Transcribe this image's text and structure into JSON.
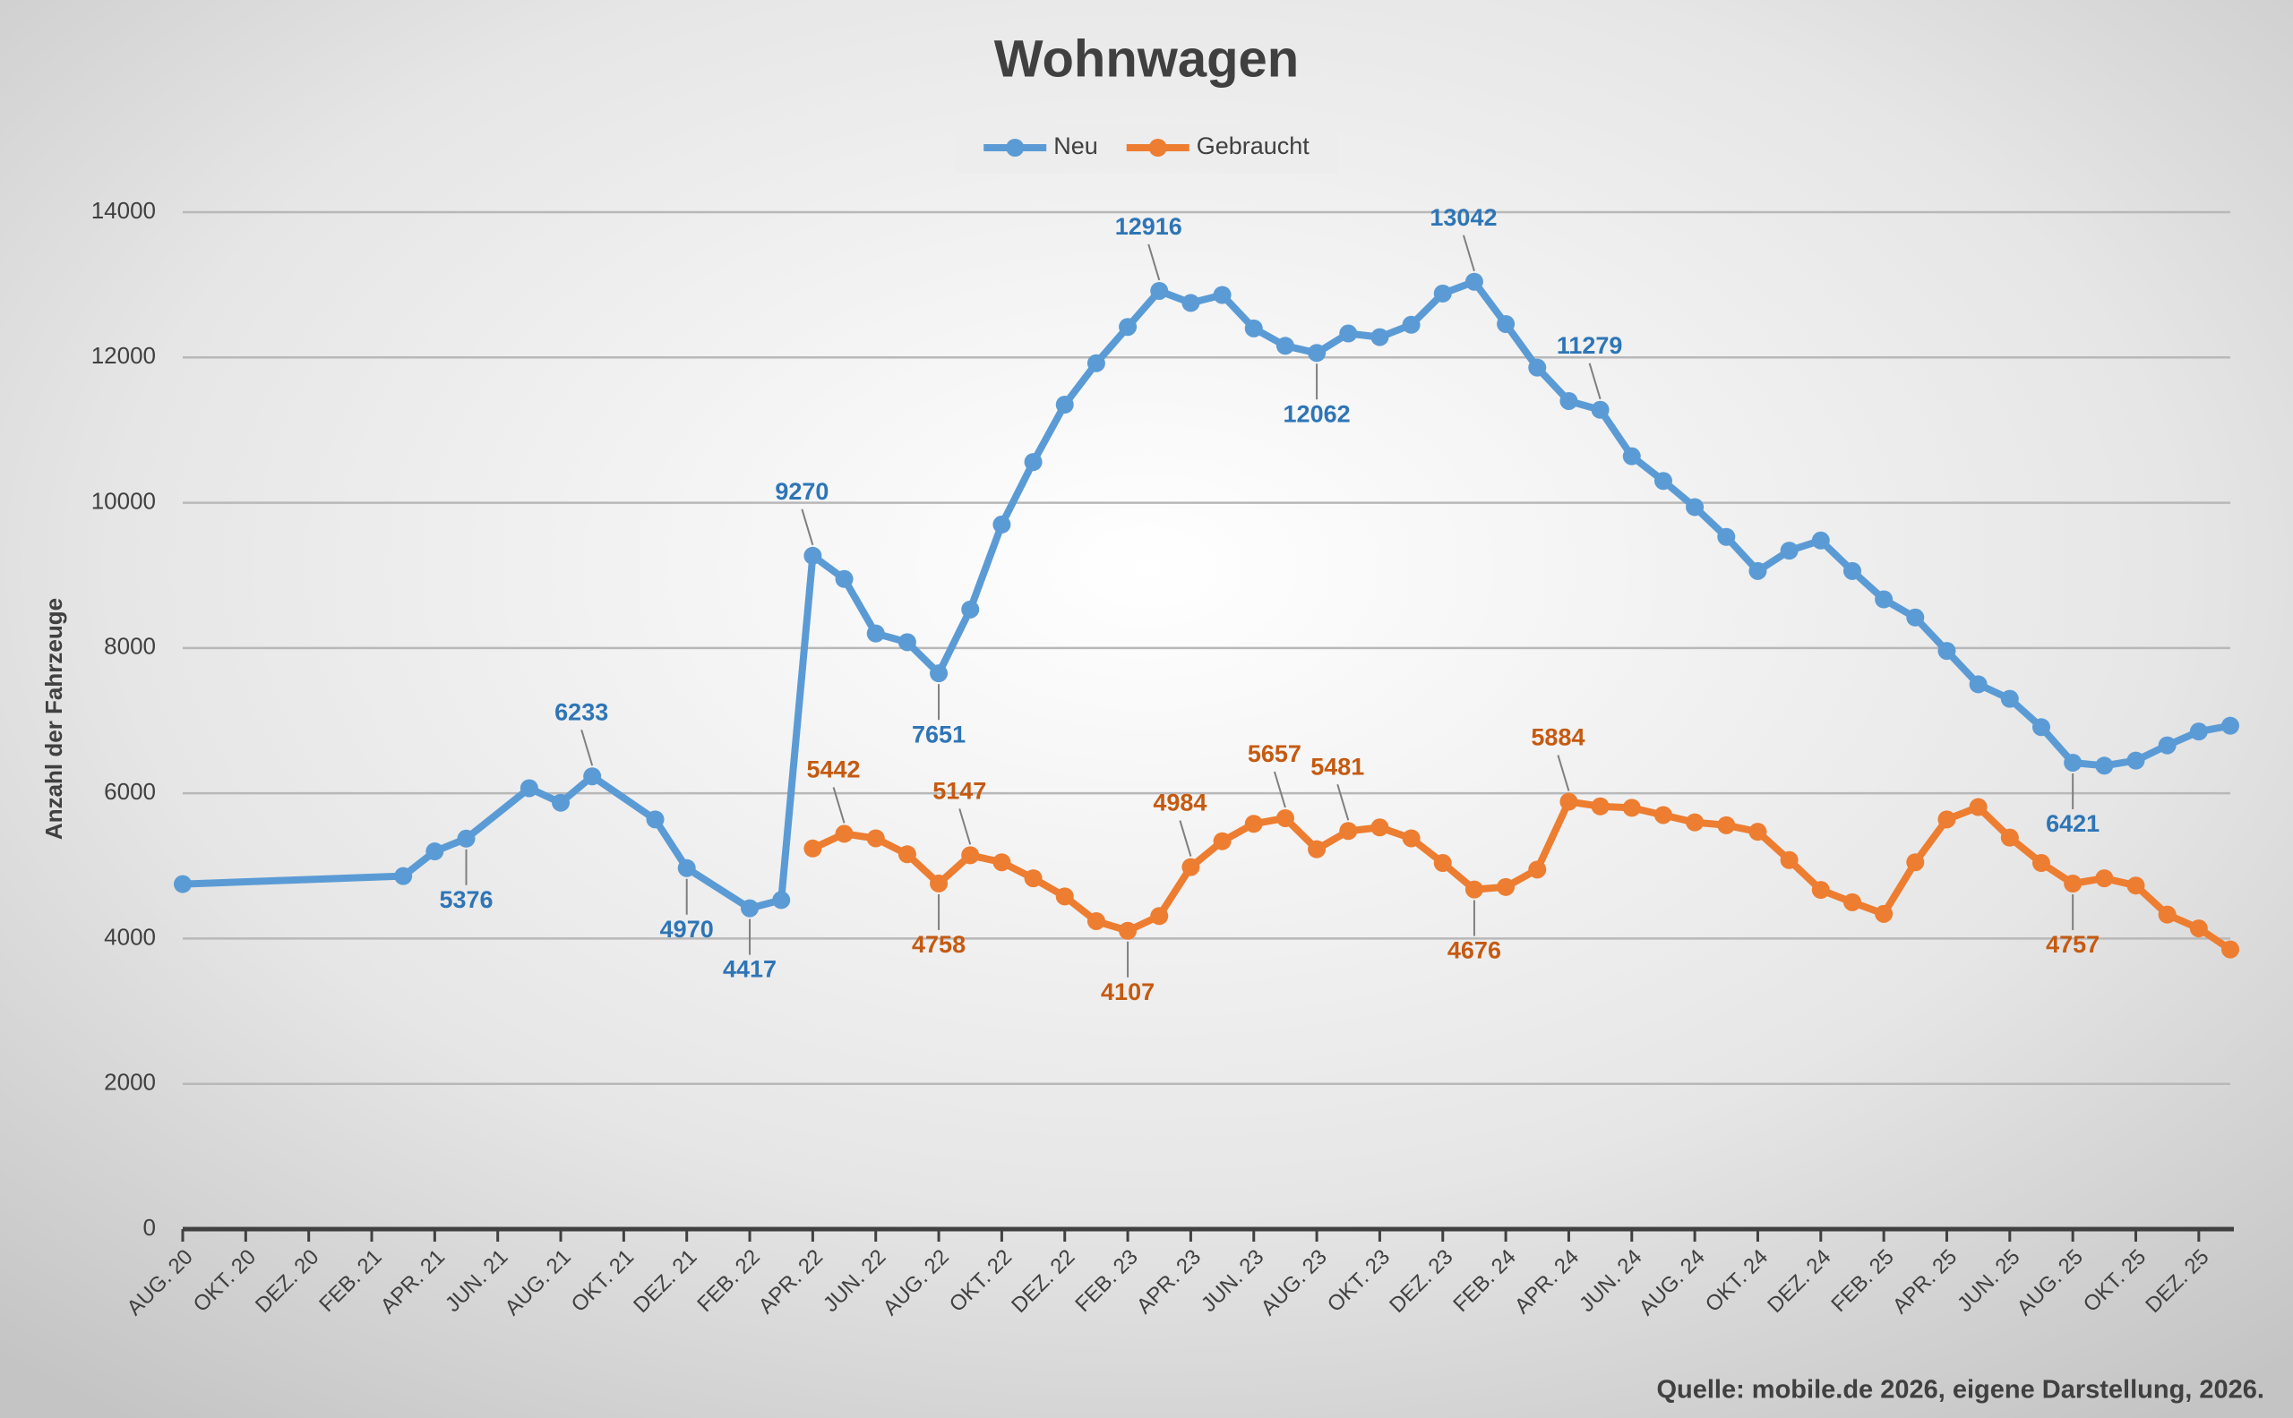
{
  "chart_data": {
    "type": "line",
    "title": "Wohnwagen",
    "y_label": "Anzahl der Fahrzeuge",
    "source": "Quelle: mobile.de 2026, eigene Darstellung, 2026.",
    "legend": "top",
    "grid": true,
    "ylim": [
      0,
      14000
    ],
    "yticks": [
      0,
      2000,
      4000,
      6000,
      8000,
      10000,
      12000,
      14000
    ],
    "xlim": [
      "2020-08",
      "2026-01"
    ],
    "xticks": [
      {
        "value": "2020-08",
        "label": "AUG. 20"
      },
      {
        "value": "2020-10",
        "label": "OKT. 20"
      },
      {
        "value": "2020-12",
        "label": "DEZ. 20"
      },
      {
        "value": "2021-02",
        "label": "FEB. 21"
      },
      {
        "value": "2021-04",
        "label": "APR. 21"
      },
      {
        "value": "2021-06",
        "label": "JUN. 21"
      },
      {
        "value": "2021-08",
        "label": "AUG. 21"
      },
      {
        "value": "2021-10",
        "label": "OKT. 21"
      },
      {
        "value": "2021-12",
        "label": "DEZ. 21"
      },
      {
        "value": "2022-02",
        "label": "FEB. 22"
      },
      {
        "value": "2022-04",
        "label": "APR. 22"
      },
      {
        "value": "2022-06",
        "label": "JUN. 22"
      },
      {
        "value": "2022-08",
        "label": "AUG. 22"
      },
      {
        "value": "2022-10",
        "label": "OKT. 22"
      },
      {
        "value": "2022-12",
        "label": "DEZ. 22"
      },
      {
        "value": "2023-02",
        "label": "FEB. 23"
      },
      {
        "value": "2023-04",
        "label": "APR. 23"
      },
      {
        "value": "2023-06",
        "label": "JUN. 23"
      },
      {
        "value": "2023-08",
        "label": "AUG. 23"
      },
      {
        "value": "2023-10",
        "label": "OKT. 23"
      },
      {
        "value": "2023-12",
        "label": "DEZ. 23"
      },
      {
        "value": "2024-02",
        "label": "FEB. 24"
      },
      {
        "value": "2024-04",
        "label": "APR. 24"
      },
      {
        "value": "2024-06",
        "label": "JUN. 24"
      },
      {
        "value": "2024-08",
        "label": "AUG. 24"
      },
      {
        "value": "2024-10",
        "label": "OKT. 24"
      },
      {
        "value": "2024-12",
        "label": "DEZ. 24"
      },
      {
        "value": "2025-02",
        "label": "FEB. 25"
      },
      {
        "value": "2025-04",
        "label": "APR. 25"
      },
      {
        "value": "2025-06",
        "label": "JUN. 25"
      },
      {
        "value": "2025-08",
        "label": "AUG. 25"
      },
      {
        "value": "2025-10",
        "label": "OKT. 25"
      },
      {
        "value": "2025-12",
        "label": "DEZ. 25"
      }
    ],
    "series": [
      {
        "name": "Neu",
        "color": "#5b9bd5",
        "label_color": "#2e75b6",
        "x": [
          "2020-08",
          "2021-03",
          "2021-04",
          "2021-05",
          "2021-07",
          "2021-08",
          "2021-09",
          "2021-11",
          "2021-12",
          "2022-02",
          "2022-03",
          "2022-04",
          "2022-05",
          "2022-06",
          "2022-07",
          "2022-08",
          "2022-09",
          "2022-10",
          "2022-11",
          "2022-12",
          "2023-01",
          "2023-02",
          "2023-03",
          "2023-04",
          "2023-05",
          "2023-06",
          "2023-07",
          "2023-08",
          "2023-09",
          "2023-10",
          "2023-11",
          "2023-12",
          "2024-01",
          "2024-02",
          "2024-03",
          "2024-04",
          "2024-05",
          "2024-06",
          "2024-07",
          "2024-08",
          "2024-09",
          "2024-10",
          "2024-11",
          "2024-12",
          "2025-01",
          "2025-02",
          "2025-03",
          "2025-04",
          "2025-05",
          "2025-06",
          "2025-07",
          "2025-08",
          "2025-09",
          "2025-10",
          "2025-11",
          "2025-12",
          "2026-01"
        ],
        "values": [
          4750,
          4860,
          5200,
          5376,
          6070,
          5870,
          6233,
          5640,
          4970,
          4417,
          4530,
          9270,
          8950,
          8200,
          8080,
          7651,
          8530,
          9700,
          10560,
          11350,
          11920,
          12420,
          12916,
          12750,
          12860,
          12400,
          12160,
          12062,
          12330,
          12280,
          12450,
          12880,
          13042,
          12460,
          11860,
          11400,
          11279,
          10640,
          10300,
          9940,
          9530,
          9060,
          9340,
          9480,
          9060,
          8670,
          8420,
          7960,
          7500,
          7300,
          6910,
          6421,
          6380,
          6450,
          6660,
          6850,
          6930
        ],
        "labeled_points": [
          3,
          6,
          8,
          9,
          11,
          15,
          22,
          27,
          32,
          36,
          51
        ]
      },
      {
        "name": "Gebraucht",
        "color": "#ed7d31",
        "label_color": "#c55a11",
        "x": [
          "2022-04",
          "2022-05",
          "2022-06",
          "2022-07",
          "2022-08",
          "2022-09",
          "2022-10",
          "2022-11",
          "2022-12",
          "2023-01",
          "2023-02",
          "2023-03",
          "2023-04",
          "2023-05",
          "2023-06",
          "2023-07",
          "2023-08",
          "2023-09",
          "2023-10",
          "2023-11",
          "2023-12",
          "2024-01",
          "2024-02",
          "2024-03",
          "2024-04",
          "2024-05",
          "2024-06",
          "2024-07",
          "2024-08",
          "2024-09",
          "2024-10",
          "2024-11",
          "2024-12",
          "2025-01",
          "2025-02",
          "2025-03",
          "2025-04",
          "2025-05",
          "2025-06",
          "2025-07",
          "2025-08",
          "2025-09",
          "2025-10",
          "2025-11",
          "2025-12",
          "2026-01"
        ],
        "values": [
          5240,
          5442,
          5380,
          5160,
          4758,
          5147,
          5050,
          4830,
          4580,
          4240,
          4107,
          4310,
          4984,
          5340,
          5580,
          5657,
          5230,
          5481,
          5530,
          5380,
          5040,
          4676,
          4710,
          4950,
          5884,
          5820,
          5800,
          5700,
          5600,
          5560,
          5470,
          5080,
          4670,
          4500,
          4340,
          5050,
          5640,
          5810,
          5390,
          5040,
          4757,
          4830,
          4730,
          4330,
          4140,
          3850
        ],
        "labeled_points": [
          1,
          4,
          5,
          10,
          12,
          15,
          17,
          21,
          24,
          40
        ]
      }
    ]
  }
}
